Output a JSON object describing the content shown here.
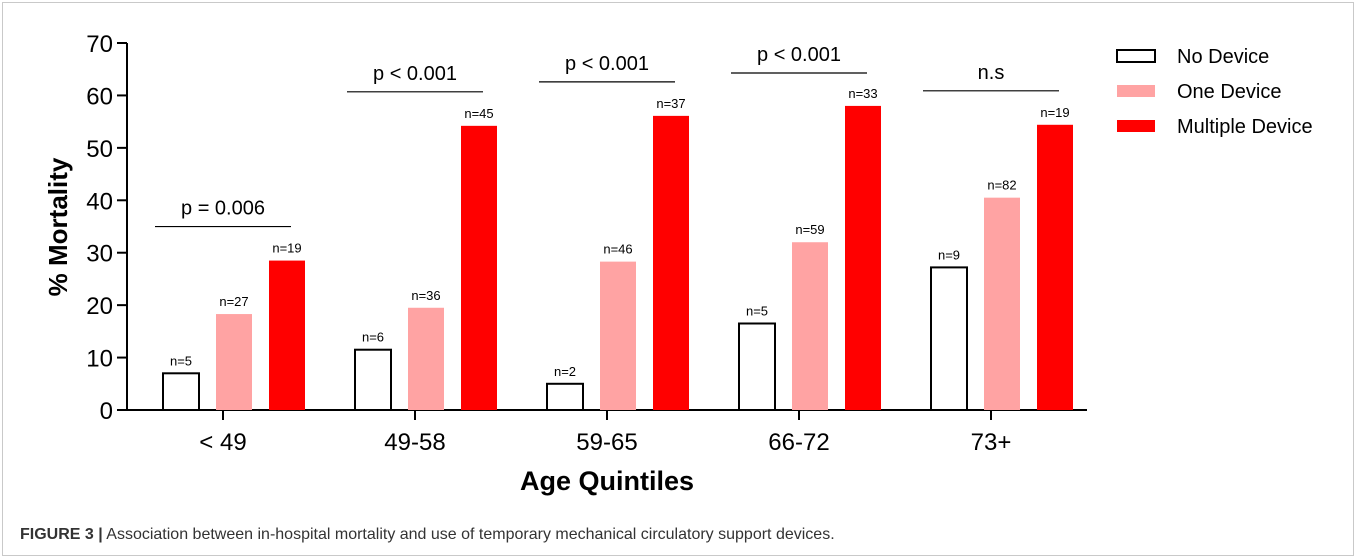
{
  "chart_data": {
    "type": "bar",
    "xlabel": "Age Quintiles",
    "ylabel": "% Mortality",
    "ylim": [
      0,
      70
    ],
    "yticks": [
      "0",
      "10",
      "20",
      "30",
      "40",
      "50",
      "60",
      "70"
    ],
    "categories": [
      "< 49",
      "49-58",
      "59-65",
      "66-72",
      "73+"
    ],
    "series": [
      {
        "name": "No Device",
        "color": "#ffffff",
        "values": [
          7,
          11.5,
          5,
          16.5,
          27.2
        ],
        "labels": [
          "n=5",
          "n=6",
          "n=2",
          "n=5",
          "n=9"
        ]
      },
      {
        "name": "One Device",
        "color": "#ffa3a3",
        "values": [
          18.3,
          19.5,
          28.3,
          32,
          40.5
        ],
        "labels": [
          "n=27",
          "n=36",
          "n=46",
          "n=59",
          "n=82"
        ]
      },
      {
        "name": "Multiple Device",
        "color": "#ff0000",
        "values": [
          28.5,
          54.2,
          56.1,
          58,
          54.4
        ],
        "labels": [
          "n=19",
          "n=45",
          "n=37",
          "n=33",
          "n=19"
        ]
      }
    ],
    "significance": [
      "p = 0.006",
      "p < 0.001",
      "p < 0.001",
      "p < 0.001",
      "n.s"
    ],
    "legend_position": "top-right"
  },
  "caption": {
    "label": "FIGURE 3 |",
    "text": " Association between in-hospital mortality and use of temporary mechanical circulatory support devices."
  }
}
